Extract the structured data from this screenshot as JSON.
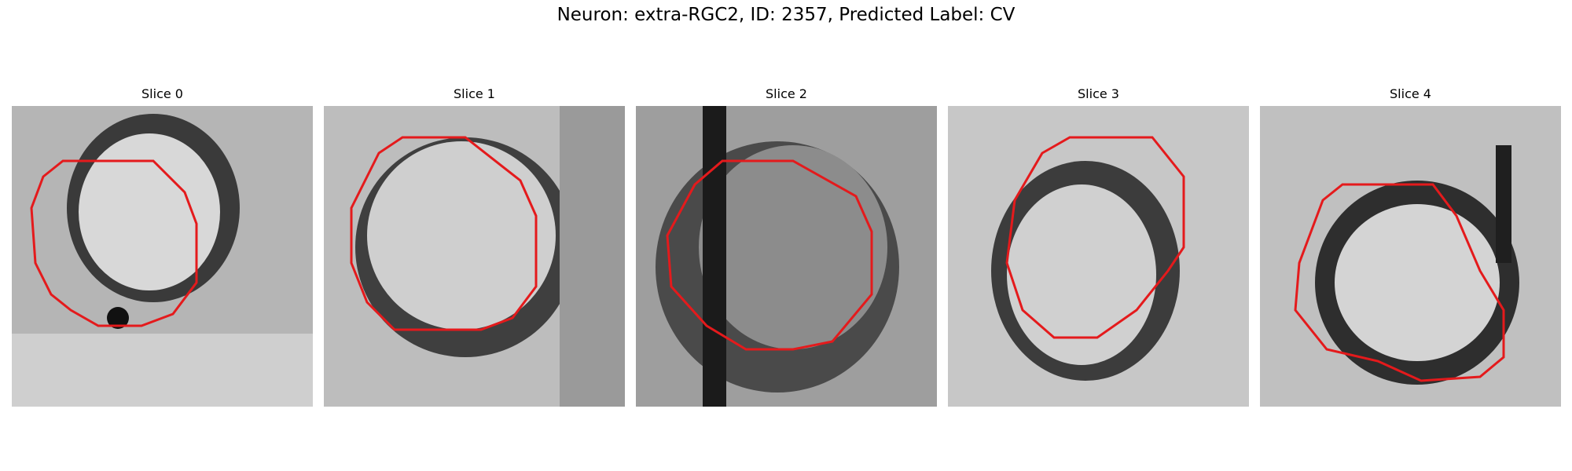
{
  "figure": {
    "title": "Neuron: extra-RGC2, ID: 2357, Predicted Label: CV"
  },
  "panels": [
    {
      "title": "Slice 0"
    },
    {
      "title": "Slice 1"
    },
    {
      "title": "Slice 2"
    },
    {
      "title": "Slice 3"
    },
    {
      "title": "Slice 4"
    }
  ],
  "colors": {
    "contour": "#e41a1c"
  }
}
